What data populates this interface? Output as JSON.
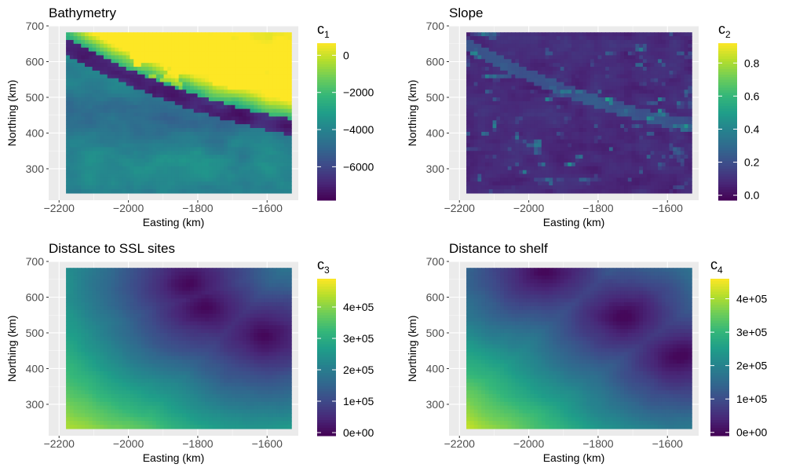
{
  "chart_data": [
    {
      "type": "heatmap",
      "title": "Bathymetry",
      "xlabel": "Easting (km)",
      "ylabel": "Northing (km)",
      "xlim": [
        -2230,
        -1510
      ],
      "ylim": [
        212,
        700
      ],
      "x_ticks": [
        -2200,
        -2000,
        -1800,
        -1600
      ],
      "y_ticks": [
        300,
        400,
        500,
        600,
        700
      ],
      "data_extent": {
        "x": [
          -2180,
          -1530
        ],
        "y": [
          232,
          682
        ]
      },
      "legend": {
        "title": "c",
        "subscript": "1",
        "range": [
          -7800,
          650
        ],
        "ticks": [
          0,
          -2000,
          -4000,
          -6000
        ],
        "tick_labels": [
          "0",
          "−2000",
          "−4000",
          "−6000"
        ],
        "placement": "right"
      },
      "field": "bathymetry",
      "grid": true
    },
    {
      "type": "heatmap",
      "title": "Slope",
      "xlabel": "Easting (km)",
      "ylabel": "Northing (km)",
      "xlim": [
        -2230,
        -1510
      ],
      "ylim": [
        212,
        700
      ],
      "x_ticks": [
        -2200,
        -2000,
        -1800,
        -1600
      ],
      "y_ticks": [
        300,
        400,
        500,
        600,
        700
      ],
      "data_extent": {
        "x": [
          -2180,
          -1530
        ],
        "y": [
          232,
          682
        ]
      },
      "legend": {
        "title": "c",
        "subscript": "2",
        "range": [
          -0.03,
          0.92
        ],
        "ticks": [
          0.0,
          0.2,
          0.4,
          0.6,
          0.8
        ],
        "tick_labels": [
          "0.0",
          "0.2",
          "0.4",
          "0.6",
          "0.8"
        ],
        "placement": "right"
      },
      "field": "slope",
      "grid": true
    },
    {
      "type": "heatmap",
      "title": "Distance to SSL sites",
      "xlabel": "Easting (km)",
      "ylabel": "Northing (km)",
      "xlim": [
        -2230,
        -1510
      ],
      "ylim": [
        212,
        700
      ],
      "x_ticks": [
        -2200,
        -2000,
        -1800,
        -1600
      ],
      "y_ticks": [
        300,
        400,
        500,
        600,
        700
      ],
      "data_extent": {
        "x": [
          -2180,
          -1530
        ],
        "y": [
          232,
          682
        ]
      },
      "legend": {
        "title": "c",
        "subscript": "3",
        "range": [
          -10000,
          490000
        ],
        "ticks": [
          0,
          100000,
          200000,
          300000,
          400000
        ],
        "tick_labels": [
          "0e+00",
          "1e+05",
          "2e+05",
          "3e+05",
          "4e+05"
        ],
        "placement": "right"
      },
      "field": "dist_ssl",
      "grid": true
    },
    {
      "type": "heatmap",
      "title": "Distance to shelf",
      "xlabel": "Easting (km)",
      "ylabel": "Northing (km)",
      "xlim": [
        -2230,
        -1510
      ],
      "ylim": [
        212,
        700
      ],
      "x_ticks": [
        -2200,
        -2000,
        -1800,
        -1600
      ],
      "y_ticks": [
        300,
        400,
        500,
        600,
        700
      ],
      "data_extent": {
        "x": [
          -2180,
          -1530
        ],
        "y": [
          232,
          682
        ]
      },
      "legend": {
        "title": "c",
        "subscript": "4",
        "range": [
          -10000,
          460000
        ],
        "ticks": [
          0,
          100000,
          200000,
          300000,
          400000
        ],
        "tick_labels": [
          "0e+00",
          "1e+05",
          "2e+05",
          "3e+05",
          "4e+05"
        ],
        "placement": "right"
      },
      "field": "dist_shelf",
      "grid": true
    }
  ],
  "colors": {
    "panel_bg": "#ebebeb",
    "grid_major": "#ffffff",
    "text": "#000000",
    "tick_text": "#4d4d4d",
    "palette": "viridis"
  }
}
